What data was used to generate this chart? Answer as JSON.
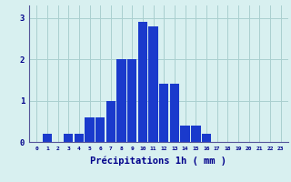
{
  "values": [
    0,
    0.2,
    0,
    0.2,
    0.2,
    0.6,
    0.6,
    1.0,
    2.0,
    2.0,
    2.9,
    2.8,
    1.4,
    1.4,
    0.4,
    0.4,
    0.2,
    0,
    0,
    0,
    0,
    0,
    0,
    0
  ],
  "categories": [
    0,
    1,
    2,
    3,
    4,
    5,
    6,
    7,
    8,
    9,
    10,
    11,
    12,
    13,
    14,
    15,
    16,
    17,
    18,
    19,
    20,
    21,
    22,
    23
  ],
  "bar_color": "#1a3acc",
  "background_color": "#d8f0f0",
  "grid_color": "#aacfcf",
  "xlabel": "Précipitations 1h ( mm )",
  "xlabel_color": "#00008b",
  "axis_color": "#555599",
  "tick_color": "#00008b",
  "ylim": [
    0,
    3.3
  ],
  "yticks": [
    0,
    1,
    2,
    3
  ],
  "title": ""
}
